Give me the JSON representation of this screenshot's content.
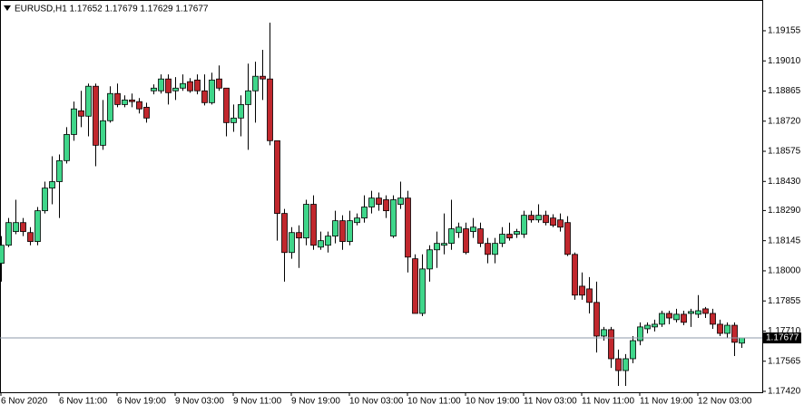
{
  "chart_data": {
    "type": "candlestick",
    "title": "EURUSD,H1  1.17652 1.17679 1.17629 1.17677",
    "categories": [
      "6 Nov 2020",
      null,
      null,
      null,
      null,
      null,
      null,
      null,
      "6 Nov 11:00",
      null,
      null,
      null,
      null,
      null,
      null,
      null,
      "6 Nov 19:00",
      null,
      null,
      null,
      null,
      null,
      null,
      null,
      "9 Nov 03:00",
      null,
      null,
      null,
      null,
      null,
      null,
      null,
      "9 Nov 11:00",
      null,
      null,
      null,
      null,
      null,
      null,
      null,
      "9 Nov 19:00",
      null,
      null,
      null,
      null,
      null,
      null,
      null,
      "10 Nov 03:00",
      null,
      null,
      null,
      null,
      null,
      null,
      null,
      "10 Nov 11:00",
      null,
      null,
      null,
      null,
      null,
      null,
      null,
      "10 Nov 19:00",
      null,
      null,
      null,
      null,
      null,
      null,
      null,
      "11 Nov 03:00",
      null,
      null,
      null,
      null,
      null,
      null,
      null,
      "11 Nov 11:00",
      null,
      null,
      null,
      null,
      null,
      null,
      null,
      "11 Nov 19:00",
      null,
      null,
      null,
      null,
      null,
      null,
      null,
      "12 Nov 03:00",
      null,
      null,
      null,
      null,
      null,
      null
    ],
    "open": [
      1.18036,
      1.18123,
      1.18189,
      1.18232,
      1.18184,
      1.18141,
      1.18289,
      1.18398,
      1.18429,
      1.1853,
      1.18656,
      1.1877,
      1.18744,
      1.18888,
      1.18604,
      1.18722,
      1.18853,
      1.188,
      1.18822,
      1.18814,
      1.18787,
      1.18866,
      1.18866,
      1.18923,
      1.18866,
      1.18879,
      1.1891,
      1.18918,
      1.18866,
      1.18809,
      1.18923,
      1.18879,
      1.18713,
      1.18735,
      1.188,
      1.18866,
      1.18936,
      1.18923,
      1.18626,
      1.18276,
      1.18088,
      1.18184,
      1.18158,
      1.1832,
      1.18114,
      1.18123,
      1.18167,
      1.18241,
      1.18141,
      1.18232,
      1.18254,
      1.18307,
      1.1835,
      1.18342,
      1.18167,
      1.1832,
      1.1835,
      1.18058,
      1.17795,
      1.18009,
      1.18101,
      1.18123,
      1.18132,
      1.18184,
      1.18202,
      1.18189,
      1.18202,
      1.18132,
      1.18079,
      1.18132,
      1.18176,
      1.18176,
      1.18176,
      1.18267,
      1.18245,
      1.18267,
      1.18254,
      1.18245,
      1.18232,
      1.18079,
      1.17926,
      1.17913,
      1.17848,
      1.17686,
      1.17717,
      1.17577,
      1.1752,
      1.17577,
      1.17664,
      1.17721,
      1.1773,
      1.17743,
      1.17795,
      1.17765,
      1.17791,
      1.17795,
      1.17791,
      1.17817,
      1.17795,
      1.17743,
      1.17699,
      1.17738,
      1.17652
    ],
    "high": [
      1.18167,
      1.18254,
      1.18342,
      1.18254,
      1.1821,
      1.18307,
      1.18429,
      1.18551,
      1.1856,
      1.18691,
      1.18814,
      1.18866,
      1.18901,
      1.18901,
      1.18822,
      1.18888,
      1.18901,
      1.18844,
      1.18853,
      1.18831,
      1.18809,
      1.18897,
      1.18945,
      1.18945,
      1.18932,
      1.18945,
      1.18927,
      1.18945,
      1.18945,
      1.18953,
      1.18988,
      1.18879,
      1.188,
      1.18844,
      1.18997,
      1.19006,
      1.19063,
      1.19194,
      1.18626,
      1.18298,
      1.1821,
      1.18219,
      1.18342,
      1.18363,
      1.18189,
      1.18189,
      1.18289,
      1.18267,
      1.18289,
      1.18276,
      1.18363,
      1.18385,
      1.18377,
      1.18363,
      1.18363,
      1.18429,
      1.18385,
      1.18079,
      1.18079,
      1.18123,
      1.18189,
      1.18276,
      1.18342,
      1.18232,
      1.18232,
      1.18254,
      1.18232,
      1.18158,
      1.18158,
      1.1821,
      1.18232,
      1.18202,
      1.18289,
      1.18289,
      1.1832,
      1.18289,
      1.18272,
      1.18276,
      1.18263,
      1.18088,
      1.17992,
      1.1797,
      1.17948,
      1.1773,
      1.1773,
      1.17621,
      1.17599,
      1.17686,
      1.17752,
      1.17752,
      1.17765,
      1.17808,
      1.17808,
      1.17817,
      1.17808,
      1.17817,
      1.17883,
      1.17826,
      1.17817,
      1.17765,
      1.17752,
      1.17752,
      1.17679
    ],
    "low": [
      1.17948,
      1.18114,
      1.18176,
      1.18167,
      1.18123,
      1.18123,
      1.18276,
      1.1832,
      1.18254,
      1.18516,
      1.18626,
      1.18691,
      1.18647,
      1.18503,
      1.18582,
      1.18713,
      1.18787,
      1.18787,
      1.18787,
      1.18757,
      1.18713,
      1.18849,
      1.18853,
      1.188,
      1.18822,
      1.18866,
      1.18857,
      1.18849,
      1.18796,
      1.188,
      1.18866,
      1.18647,
      1.18669,
      1.18647,
      1.18582,
      1.18713,
      1.18822,
      1.18604,
      1.18145,
      1.17948,
      1.18058,
      1.18014,
      1.18123,
      1.18101,
      1.18101,
      1.18088,
      1.18132,
      1.18101,
      1.18123,
      1.18219,
      1.18232,
      1.18276,
      1.18289,
      1.18254,
      1.18158,
      1.18298,
      1.17992,
      1.17795,
      1.17782,
      1.17948,
      1.18014,
      1.18079,
      1.18101,
      1.18158,
      1.18079,
      1.18158,
      1.18114,
      1.18036,
      1.18036,
      1.18114,
      1.18145,
      1.18158,
      1.18158,
      1.18232,
      1.18232,
      1.18219,
      1.1821,
      1.18189,
      1.18071,
      1.17861,
      1.17861,
      1.17795,
      1.17607,
      1.17664,
      1.17533,
      1.17446,
      1.17446,
      1.17555,
      1.17642,
      1.17699,
      1.17708,
      1.1773,
      1.17743,
      1.17752,
      1.17738,
      1.1773,
      1.17773,
      1.17773,
      1.17721,
      1.17686,
      1.17677,
      1.1759,
      1.17629
    ],
    "close": [
      1.18123,
      1.18232,
      1.18232,
      1.18189,
      1.18141,
      1.18289,
      1.18398,
      1.18429,
      1.1853,
      1.18656,
      1.18779,
      1.18744,
      1.18888,
      1.18604,
      1.18722,
      1.18853,
      1.188,
      1.18822,
      1.18814,
      1.18779,
      1.18735,
      1.18879,
      1.18923,
      1.18857,
      1.18879,
      1.18901,
      1.18866,
      1.18866,
      1.18809,
      1.18918,
      1.18879,
      1.18713,
      1.18735,
      1.188,
      1.18866,
      1.18936,
      1.18923,
      1.18626,
      1.18276,
      1.18088,
      1.18184,
      1.18158,
      1.1832,
      1.18123,
      1.18145,
      1.18167,
      1.18241,
      1.18141,
      1.18241,
      1.18254,
      1.18307,
      1.1835,
      1.1832,
      1.18289,
      1.18342,
      1.1835,
      1.18066,
      1.17795,
      1.18009,
      1.18101,
      1.18132,
      1.18132,
      1.18202,
      1.1821,
      1.18088,
      1.1821,
      1.18132,
      1.18079,
      1.18132,
      1.18176,
      1.18158,
      1.18189,
      1.18267,
      1.18245,
      1.18267,
      1.18232,
      1.18219,
      1.1821,
      1.18079,
      1.17883,
      1.17883,
      1.17848,
      1.17686,
      1.17717,
      1.17577,
      1.1752,
      1.17577,
      1.17664,
      1.1773,
      1.17738,
      1.17743,
      1.17795,
      1.17773,
      1.17791,
      1.17752,
      1.17804,
      1.17808,
      1.17795,
      1.17743,
      1.17699,
      1.17738,
      1.17656,
      1.17677
    ],
    "up_color": "#3fd68a",
    "down_color": "#c1272d",
    "ylim": [
      1.1742,
      1.19303
    ],
    "yticks": [
      {
        "value": 1.19155,
        "label": "1.19155"
      },
      {
        "value": 1.1901,
        "label": "1.19010"
      },
      {
        "value": 1.18865,
        "label": "1.18865"
      },
      {
        "value": 1.1872,
        "label": "1.18720"
      },
      {
        "value": 1.18575,
        "label": "1.18575"
      },
      {
        "value": 1.1843,
        "label": "1.18430"
      },
      {
        "value": 1.1829,
        "label": "1.18290"
      },
      {
        "value": 1.18145,
        "label": "1.18145"
      },
      {
        "value": 1.18,
        "label": "1.18000"
      },
      {
        "value": 1.17855,
        "label": "1.17855"
      },
      {
        "value": 1.1771,
        "label": "1.17710"
      },
      {
        "value": 1.17565,
        "label": "1.17565"
      },
      {
        "value": 1.1742,
        "label": "1.17420"
      }
    ],
    "last_price": 1.17677,
    "grid": false
  }
}
